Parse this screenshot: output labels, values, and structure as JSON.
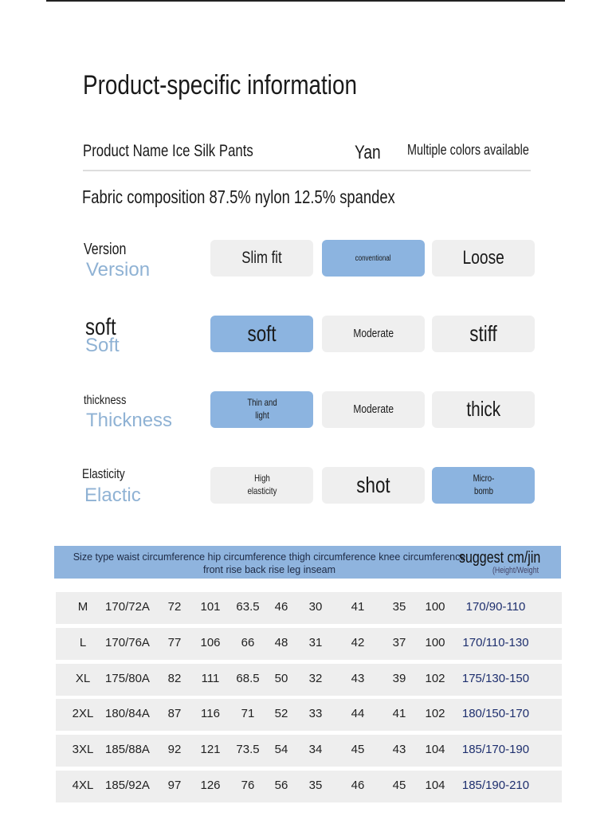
{
  "title": "Product-specific information",
  "product_name": "Product Name Ice Silk Pants",
  "brand": "Yan",
  "colors_note": "Multiple colors available",
  "fabric": "Fabric composition 87.5% nylon 12.5% spandex",
  "attributes": [
    {
      "label": "Version",
      "label_en": "Version",
      "options": [
        "Slim fit",
        "conventional",
        "Loose"
      ],
      "selected": 1
    },
    {
      "label": "soft",
      "label_en": "Soft",
      "options": [
        "soft",
        "Moderate",
        "stiff"
      ],
      "selected": 0
    },
    {
      "label": "thickness",
      "label_en": "Thickness",
      "options": [
        "Thin and light",
        "Moderate",
        "thick"
      ],
      "selected": 0
    },
    {
      "label": "Elasticity",
      "label_en": "Elactic",
      "options": [
        "High elasticity",
        "shot",
        "Micro-bomb"
      ],
      "selected": 2
    }
  ],
  "size_table": {
    "header": "Size type waist circumference hip circumference thigh circumference knee circumference front rise back rise leg inseam",
    "suggest": "suggest cm/jin",
    "suggest_sub": "(Height/Weight",
    "rows": [
      [
        "M",
        "170/72A",
        "72",
        "101",
        "63.5",
        "46",
        "30",
        "41",
        "35",
        "100",
        "170/90-110"
      ],
      [
        "L",
        "170/76A",
        "77",
        "106",
        "66",
        "48",
        "31",
        "42",
        "37",
        "100",
        "170/110-130"
      ],
      [
        "XL",
        "175/80A",
        "82",
        "111",
        "68.5",
        "50",
        "32",
        "43",
        "39",
        "102",
        "175/130-150"
      ],
      [
        "2XL",
        "180/84A",
        "87",
        "116",
        "71",
        "52",
        "33",
        "44",
        "41",
        "102",
        "180/150-170"
      ],
      [
        "3XL",
        "185/88A",
        "92",
        "121",
        "73.5",
        "54",
        "34",
        "45",
        "43",
        "104",
        "185/170-190"
      ],
      [
        "4XL",
        "185/92A",
        "97",
        "126",
        "76",
        "56",
        "35",
        "46",
        "45",
        "104",
        "185/190-210"
      ]
    ]
  },
  "colors": {
    "accent": "#8cb4e0",
    "option_bg": "#efefef",
    "label_light": "#8fb2d4"
  }
}
